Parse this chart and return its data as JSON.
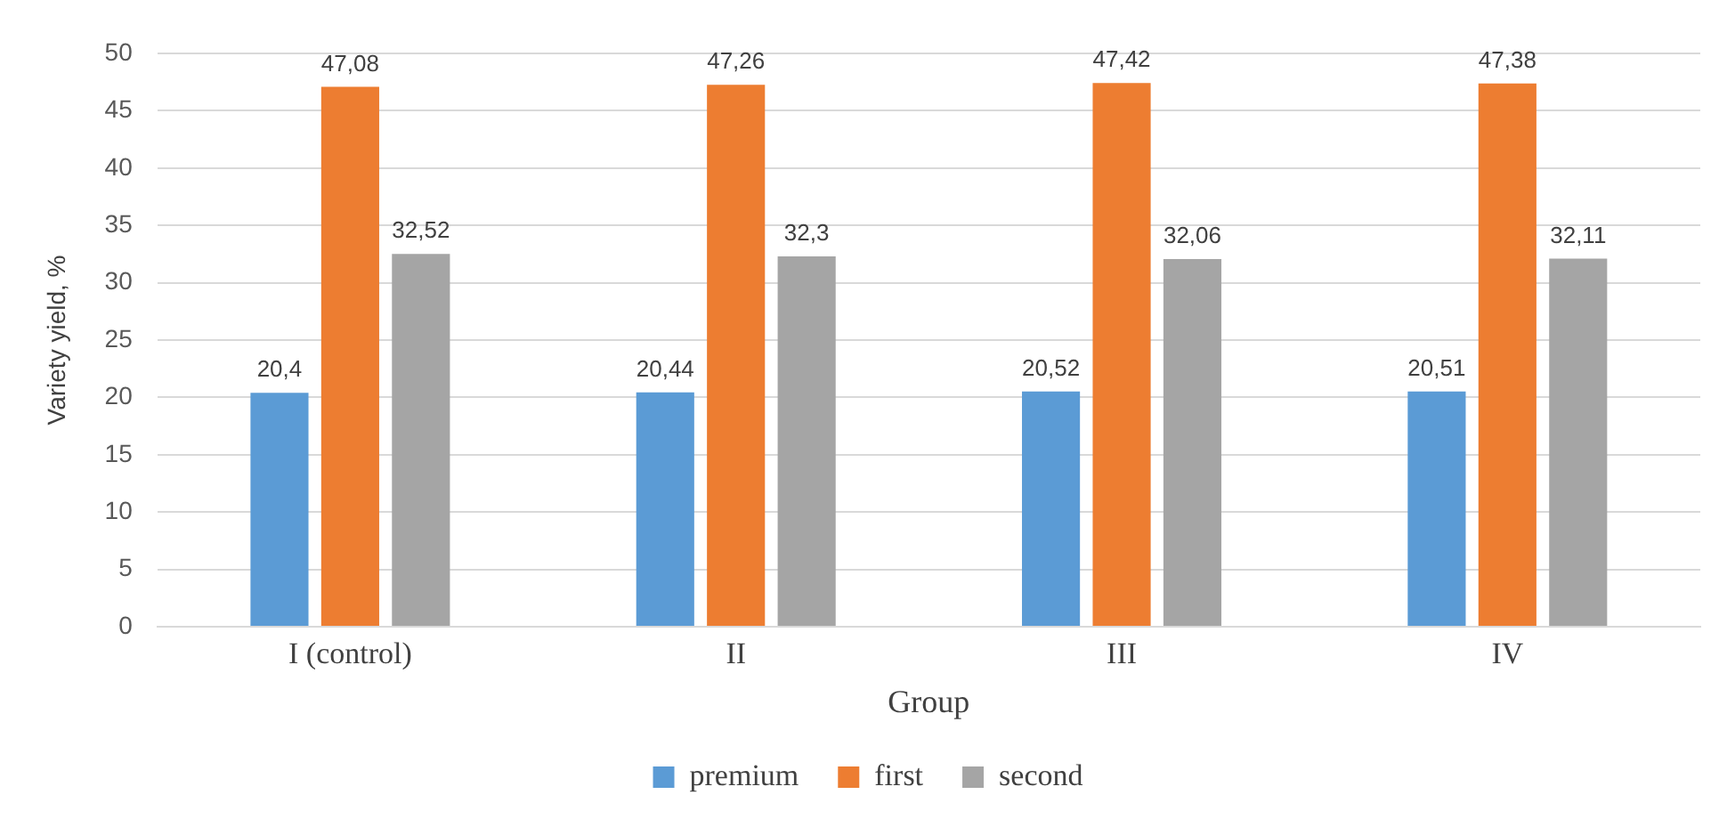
{
  "chart_data": {
    "type": "bar",
    "xlabel": "Group",
    "ylabel": "Variety yield, %",
    "categories": [
      "I (control)",
      "II",
      "III",
      "IV"
    ],
    "series": [
      {
        "name": "premium",
        "color": "#5b9bd5",
        "values": [
          20.4,
          20.44,
          20.52,
          20.51
        ],
        "value_labels": [
          "20,4",
          "20,44",
          "20,52",
          "20,51"
        ]
      },
      {
        "name": "first",
        "color": "#ed7d31",
        "values": [
          47.08,
          47.26,
          47.42,
          47.38
        ],
        "value_labels": [
          "47,08",
          "47,26",
          "47,42",
          "47,38"
        ]
      },
      {
        "name": "second",
        "color": "#a5a5a5",
        "values": [
          32.52,
          32.3,
          32.06,
          32.11
        ],
        "value_labels": [
          "32,52",
          "32,3",
          "32,06",
          "32,11"
        ]
      }
    ],
    "ylim": [
      0,
      50
    ],
    "yticks": [
      0,
      5,
      10,
      15,
      20,
      25,
      30,
      35,
      40,
      45,
      50
    ],
    "grid": "y",
    "legend": "bottom"
  }
}
